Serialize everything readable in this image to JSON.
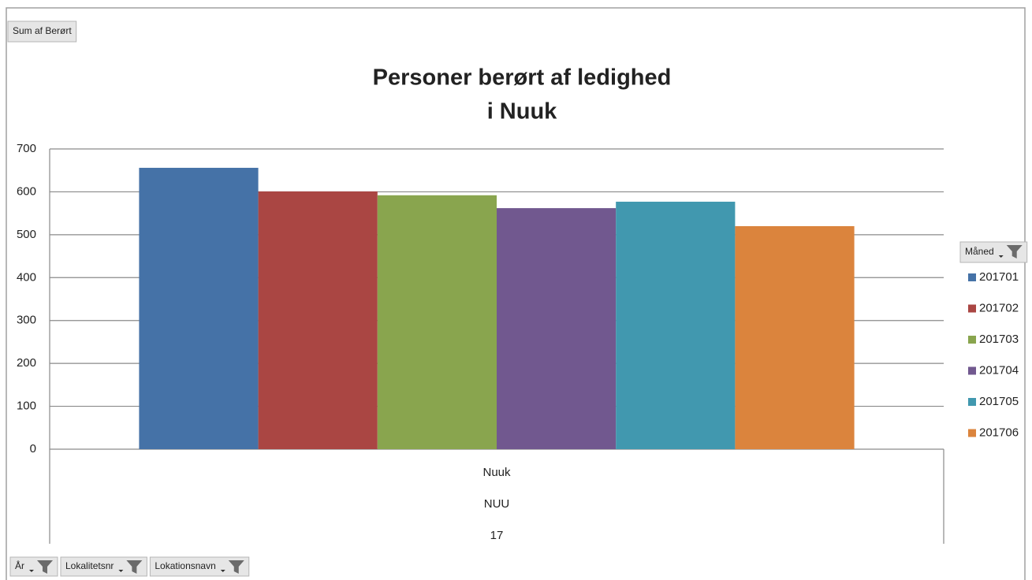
{
  "chart_data": {
    "type": "bar",
    "title": [
      "Personer berørt af ledighed",
      "i Nuuk"
    ],
    "value_field": "Sum af Berørt",
    "legend_title": "Måned",
    "filter_fields": [
      "År",
      "Lokalitetsnr",
      "Lokationsnavn"
    ],
    "categories": [
      "Nuuk"
    ],
    "category_sublabels": [
      "NUU",
      "17"
    ],
    "series": [
      {
        "name": "201701",
        "color": "#4572a7",
        "values": [
          656
        ]
      },
      {
        "name": "201702",
        "color": "#aa4643",
        "values": [
          601
        ]
      },
      {
        "name": "201703",
        "color": "#89a54e",
        "values": [
          592
        ]
      },
      {
        "name": "201704",
        "color": "#71588f",
        "values": [
          562
        ]
      },
      {
        "name": "201705",
        "color": "#4198af",
        "values": [
          577
        ]
      },
      {
        "name": "201706",
        "color": "#db843d",
        "values": [
          520
        ]
      }
    ],
    "ylim": [
      0,
      700
    ],
    "yticks": [
      0,
      100,
      200,
      300,
      400,
      500,
      600,
      700
    ],
    "grid": true,
    "legend": "right"
  }
}
